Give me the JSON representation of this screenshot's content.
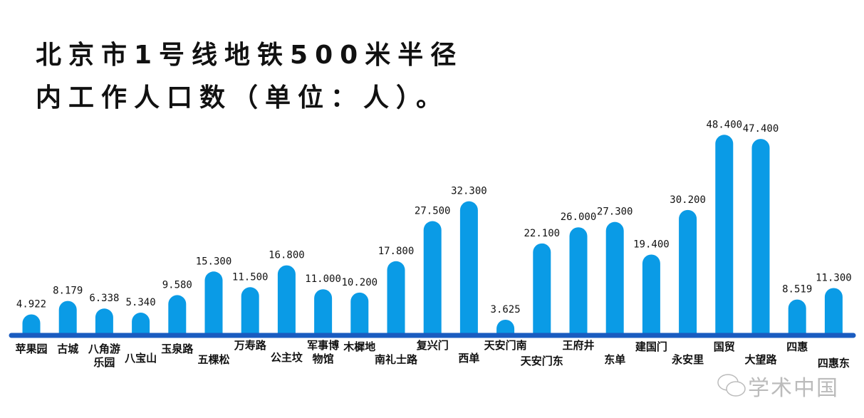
{
  "chart_data": {
    "type": "bar",
    "title": [
      "北京市1号线地铁500米半径",
      "内工作人口数（单位：人）。"
    ],
    "categories": [
      [
        "苹果园"
      ],
      [
        "古城"
      ],
      [
        "八角游",
        "乐园"
      ],
      [
        "八宝山"
      ],
      [
        "玉泉路"
      ],
      [
        "五棵松"
      ],
      [
        "万寿路"
      ],
      [
        "公主坟"
      ],
      [
        "军事博",
        "物馆"
      ],
      [
        "木樨地"
      ],
      [
        "南礼士路"
      ],
      [
        "复兴门"
      ],
      [
        "西单"
      ],
      [
        "天安门南"
      ],
      [
        "天安门东"
      ],
      [
        "王府井"
      ],
      [
        "东单"
      ],
      [
        "建国门"
      ],
      [
        "永安里"
      ],
      [
        "国贸"
      ],
      [
        "大望路"
      ],
      [
        "四惠"
      ],
      [
        "四惠东"
      ]
    ],
    "values": [
      4.922,
      8.179,
      6.338,
      5.34,
      9.58,
      15.3,
      11.5,
      16.8,
      11.0,
      10.2,
      17.8,
      27.5,
      32.3,
      3.625,
      22.1,
      26.0,
      27.3,
      19.4,
      30.2,
      48.4,
      47.4,
      8.519,
      11.3
    ],
    "value_labels": [
      "4.922",
      "8.179",
      "6.338",
      "5.340",
      "9.580",
      "15.300",
      "11.500",
      "16.800",
      "11.000",
      "10.200",
      "17.800",
      "27.500",
      "32.300",
      "3.625",
      "22.100",
      "26.000",
      "27.300",
      "19.400",
      "30.200",
      "48.400",
      "47.400",
      "8.519",
      "11.300"
    ],
    "ylim": [
      0,
      50
    ],
    "grid": false,
    "bar_color": "#0a9be6",
    "axis_color": "#1a5cc0"
  },
  "watermark": "学术中国"
}
